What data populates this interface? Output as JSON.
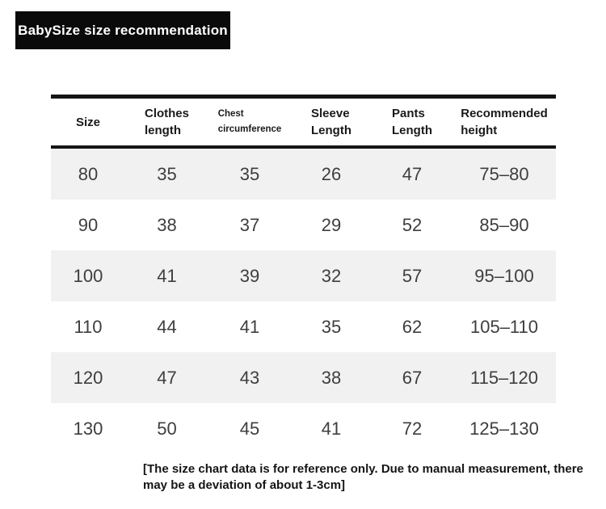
{
  "title": "BabySize size recommendation",
  "table": {
    "columns": [
      {
        "lines": [
          "Size"
        ]
      },
      {
        "lines": [
          "Clothes",
          "length"
        ]
      },
      {
        "lines": [
          "Chest",
          "circumference"
        ]
      },
      {
        "lines": [
          "Sleeve",
          "Length"
        ]
      },
      {
        "lines": [
          "Pants",
          "Length"
        ]
      },
      {
        "lines": [
          "Recommended",
          "height"
        ]
      }
    ],
    "rows": [
      [
        "80",
        "35",
        "35",
        "26",
        "47",
        "75–80"
      ],
      [
        "90",
        "38",
        "37",
        "29",
        "52",
        "85–90"
      ],
      [
        "100",
        "41",
        "39",
        "32",
        "57",
        "95–100"
      ],
      [
        "110",
        "44",
        "41",
        "35",
        "62",
        "105–110"
      ],
      [
        "120",
        "47",
        "43",
        "38",
        "67",
        "115–120"
      ],
      [
        "130",
        "50",
        "45",
        "41",
        "72",
        "125–130"
      ]
    ]
  },
  "footer": {
    "lines": [
      "[The size chart data is for reference only. Due to manual measurement, there",
      "may be a deviation of about 1-3cm]"
    ]
  },
  "colors": {
    "title_bg": "#0a0a0a",
    "title_text": "#ffffff",
    "rule": "#151515",
    "alt_row_bg": "#f1f1f1",
    "data_text": "#3e3e3e"
  }
}
